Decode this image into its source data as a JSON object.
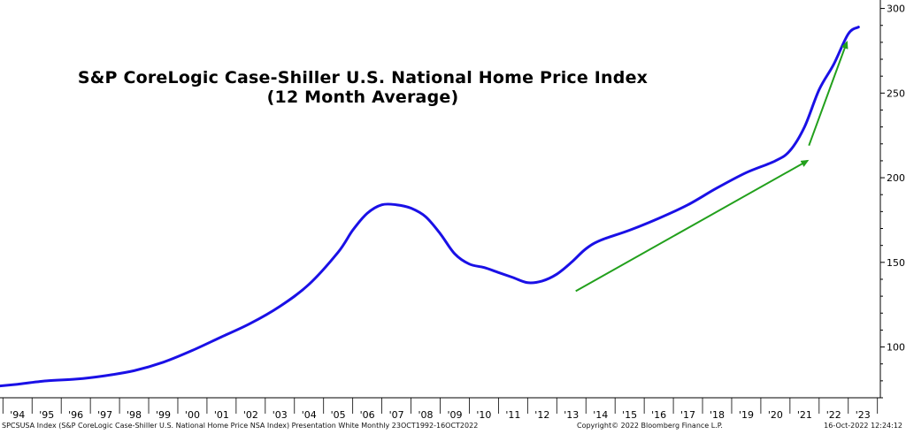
{
  "chart_data": {
    "type": "line",
    "title": "S&P CoreLogic Case-Shiller U.S. National Home Price Index",
    "subtitle": "(12 Month Average)",
    "x_start": 1993.75,
    "x_end": 2022.8,
    "xlim": [
      1993.4,
      2023.6
    ],
    "ylim": [
      70,
      305
    ],
    "y_ticks": [
      100,
      150,
      200,
      250,
      300
    ],
    "x_tick_labels": [
      "'94",
      "'95",
      "'96",
      "'97",
      "'98",
      "'99",
      "'00",
      "'01",
      "'02",
      "'03",
      "'04",
      "'05",
      "'06",
      "'07",
      "'08",
      "'09",
      "'10",
      "'11",
      "'12",
      "'13",
      "'14",
      "'15",
      "'16",
      "'17",
      "'18",
      "'19",
      "'20",
      "'21",
      "'22",
      "'23"
    ],
    "x_tick_years": [
      1994,
      1995,
      1996,
      1997,
      1998,
      1999,
      2000,
      2001,
      2002,
      2003,
      2004,
      2005,
      2006,
      2007,
      2008,
      2009,
      2010,
      2011,
      2012,
      2013,
      2014,
      2015,
      2016,
      2017,
      2018,
      2019,
      2020,
      2021,
      2022,
      2023
    ],
    "grid": false,
    "series": [
      {
        "color": "#1a10e6",
        "x": [
          1993.4,
          1994.0,
          1995.0,
          1996.0,
          1997.0,
          1998.0,
          1999.0,
          2000.0,
          2001.0,
          2002.0,
          2003.0,
          2004.0,
          2005.0,
          2005.5,
          2006.0,
          2006.5,
          2007.0,
          2007.5,
          2008.0,
          2008.5,
          2009.0,
          2009.5,
          2010.0,
          2010.5,
          2011.0,
          2011.5,
          2012.0,
          2012.5,
          2013.0,
          2013.5,
          2014.0,
          2015.0,
          2016.0,
          2017.0,
          2018.0,
          2019.0,
          2020.0,
          2020.5,
          2021.0,
          2021.5,
          2022.0,
          2022.5,
          2022.85
        ],
        "y": [
          77,
          78,
          80,
          81,
          83,
          86,
          91,
          98,
          106,
          114,
          124,
          137,
          156,
          169,
          179,
          184,
          184,
          182,
          177,
          167,
          155,
          149,
          147,
          144,
          141,
          138,
          139,
          143,
          150,
          158,
          163,
          169,
          176,
          184,
          194,
          203,
          210,
          216,
          230,
          252,
          267,
          285,
          289
        ]
      }
    ],
    "annotations": [
      {
        "type": "arrow",
        "color": "#22a01c",
        "from": [
          2013.15,
          133
        ],
        "to": [
          2021.1,
          210
        ]
      },
      {
        "type": "arrow",
        "color": "#22a01c",
        "from": [
          2021.15,
          219
        ],
        "to": [
          2022.45,
          280
        ]
      }
    ]
  },
  "footer": {
    "left": "SPCSUSA Index (S&P CoreLogic Case-Shiller U.S. National Home Price NSA Index) Presentation White  Monthly 23OCT1992-16OCT2022",
    "middle": "Copyright© 2022 Bloomberg Finance L.P.",
    "right": "16-Oct-2022 12:24:12"
  }
}
